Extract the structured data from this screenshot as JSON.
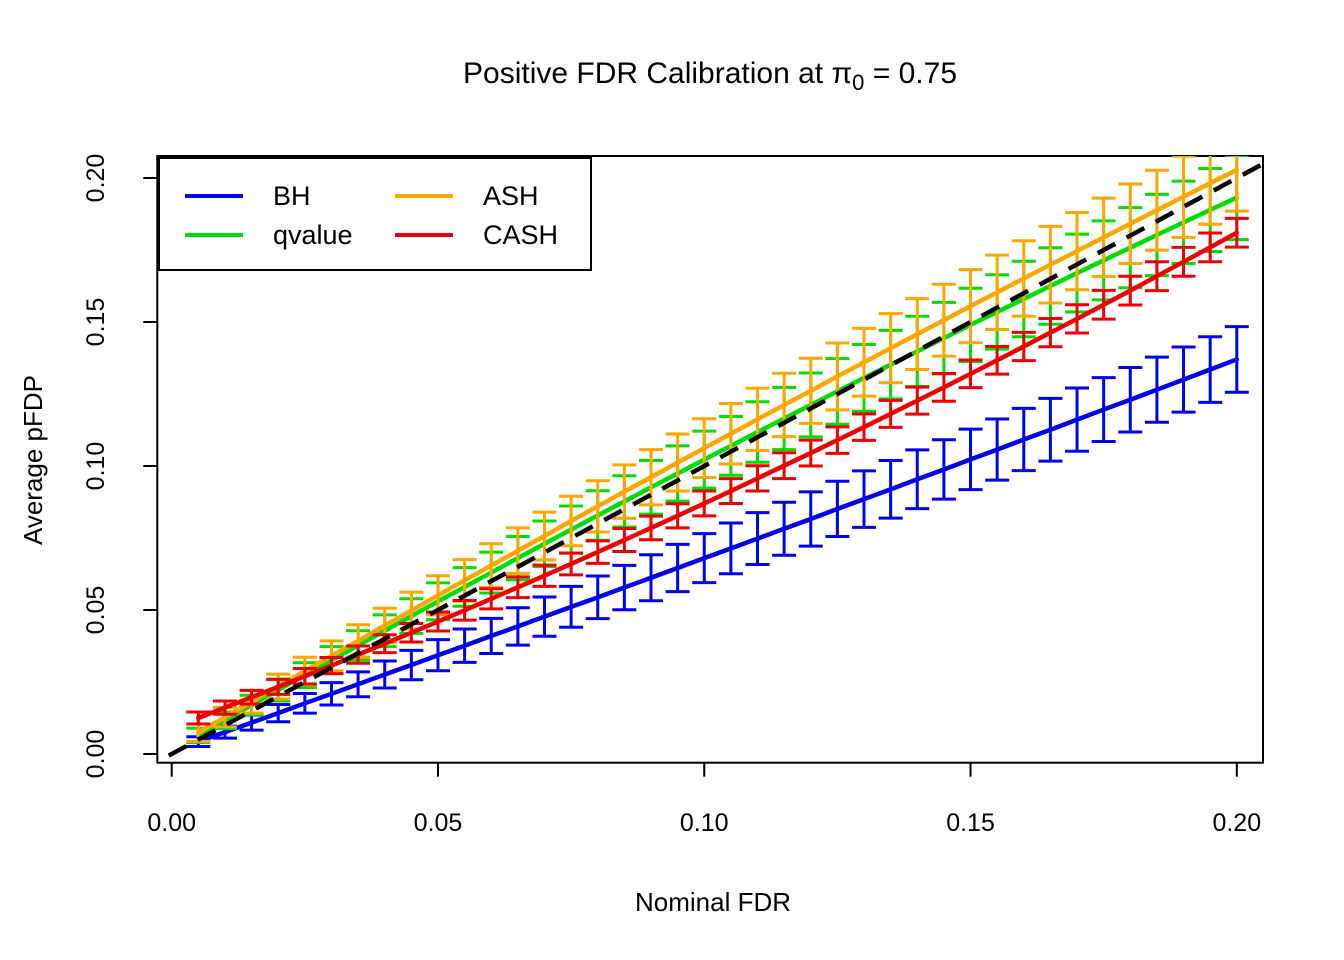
{
  "title": {
    "prefix": "Positive FDR Calibration at ",
    "pi": "π",
    "sub": "0",
    "suffix": " = 0.75"
  },
  "legend": {
    "items": [
      {
        "label": "BH",
        "color": "#0000F5"
      },
      {
        "label": "qvalue",
        "color": "#00E000"
      },
      {
        "label": "ASH",
        "color": "#FFA500"
      },
      {
        "label": "CASH",
        "color": "#F00000"
      }
    ]
  },
  "chart_data": {
    "type": "line",
    "title": "Positive FDR Calibration at π0 = 0.75",
    "xlabel": "Nominal FDR",
    "ylabel": "Average pFDP",
    "xlim": [
      0,
      0.2
    ],
    "ylim": [
      0,
      0.2
    ],
    "grid": false,
    "legend_position": "top-left",
    "x_tick_values": [
      0,
      0.05,
      0.1,
      0.15,
      0.2
    ],
    "x_tick_labels": [
      "0.00",
      "0.05",
      "0.10",
      "0.15",
      "0.20"
    ],
    "y_tick_values": [
      0,
      0.05,
      0.1,
      0.15,
      0.2
    ],
    "y_tick_labels": [
      "0.00",
      "0.05",
      "0.10",
      "0.15",
      "0.20"
    ],
    "reference_line": {
      "slope": 1,
      "intercept": 0,
      "style": "dashed",
      "color": "#000000"
    },
    "error_bars": true,
    "x": [
      0.005,
      0.01,
      0.015,
      0.02,
      0.025,
      0.03,
      0.035,
      0.04,
      0.045,
      0.05,
      0.055,
      0.06,
      0.065,
      0.07,
      0.075,
      0.08,
      0.085,
      0.09,
      0.095,
      0.1,
      0.105,
      0.11,
      0.115,
      0.12,
      0.125,
      0.13,
      0.135,
      0.14,
      0.145,
      0.15,
      0.155,
      0.16,
      0.165,
      0.17,
      0.175,
      0.18,
      0.185,
      0.19,
      0.195,
      0.2
    ],
    "series": [
      {
        "name": "BH",
        "color": "#0000F5",
        "values": [
          0.0043,
          0.0076,
          0.0109,
          0.0142,
          0.0176,
          0.0209,
          0.0242,
          0.0276,
          0.0309,
          0.0343,
          0.0376,
          0.041,
          0.0443,
          0.0477,
          0.0511,
          0.0544,
          0.0578,
          0.0612,
          0.0646,
          0.068,
          0.0714,
          0.0748,
          0.0782,
          0.0816,
          0.0851,
          0.0885,
          0.0919,
          0.0954,
          0.0988,
          0.1023,
          0.1057,
          0.1092,
          0.1126,
          0.1161,
          0.1196,
          0.123,
          0.1265,
          0.13,
          0.1335,
          0.137
        ],
        "errors": [
          0.0017,
          0.0021,
          0.0026,
          0.003,
          0.0034,
          0.0039,
          0.0043,
          0.0047,
          0.0051,
          0.0054,
          0.0058,
          0.0061,
          0.0065,
          0.0068,
          0.0071,
          0.0074,
          0.0077,
          0.008,
          0.0082,
          0.0085,
          0.0088,
          0.009,
          0.0092,
          0.0094,
          0.0096,
          0.0098,
          0.01,
          0.0102,
          0.0103,
          0.0105,
          0.0106,
          0.0108,
          0.0109,
          0.011,
          0.0111,
          0.0112,
          0.0113,
          0.0113,
          0.0114,
          0.0114
        ]
      },
      {
        "name": "qvalue",
        "color": "#00E000",
        "values": [
          0.0065,
          0.0117,
          0.017,
          0.0222,
          0.0274,
          0.0326,
          0.0377,
          0.0428,
          0.0479,
          0.053,
          0.058,
          0.063,
          0.068,
          0.073,
          0.0779,
          0.0828,
          0.0877,
          0.0926,
          0.0974,
          0.1022,
          0.107,
          0.1118,
          0.1165,
          0.1212,
          0.1259,
          0.1306,
          0.1352,
          0.1398,
          0.1444,
          0.149,
          0.1535,
          0.158,
          0.1625,
          0.167,
          0.1714,
          0.1758,
          0.1802,
          0.1846,
          0.1889,
          0.1932
        ],
        "errors": [
          0.0025,
          0.0029,
          0.0034,
          0.0038,
          0.0043,
          0.0047,
          0.0051,
          0.0055,
          0.006,
          0.0064,
          0.0067,
          0.0071,
          0.0075,
          0.0079,
          0.0082,
          0.0086,
          0.0089,
          0.0093,
          0.0096,
          0.0099,
          0.0102,
          0.0105,
          0.0108,
          0.0111,
          0.0114,
          0.0116,
          0.0119,
          0.0122,
          0.0124,
          0.0127,
          0.0129,
          0.0131,
          0.0133,
          0.0135,
          0.0137,
          0.0139,
          0.0141,
          0.0143,
          0.0144,
          0.0146
        ]
      },
      {
        "name": "ASH",
        "color": "#FFA500",
        "values": [
          0.0074,
          0.0128,
          0.0181,
          0.0234,
          0.0288,
          0.0341,
          0.0393,
          0.0446,
          0.0498,
          0.0551,
          0.0603,
          0.0654,
          0.0706,
          0.0757,
          0.0809,
          0.086,
          0.0911,
          0.0961,
          0.1012,
          0.1062,
          0.1112,
          0.1162,
          0.1212,
          0.1261,
          0.1311,
          0.136,
          0.1409,
          0.1458,
          0.1506,
          0.1555,
          0.1603,
          0.1651,
          0.1699,
          0.1746,
          0.1794,
          0.1841,
          0.1888,
          0.1935,
          0.1982,
          0.2028
        ],
        "errors": [
          0.003,
          0.0034,
          0.0039,
          0.0043,
          0.0048,
          0.0052,
          0.0056,
          0.006,
          0.0064,
          0.0068,
          0.0072,
          0.0076,
          0.0079,
          0.0083,
          0.0086,
          0.0089,
          0.0093,
          0.0096,
          0.0099,
          0.0102,
          0.0105,
          0.0108,
          0.011,
          0.0113,
          0.0116,
          0.0118,
          0.012,
          0.0123,
          0.0125,
          0.0127,
          0.0129,
          0.0131,
          0.0133,
          0.0134,
          0.0136,
          0.0138,
          0.0139,
          0.0141,
          0.0142,
          0.0143
        ]
      },
      {
        "name": "CASH",
        "color": "#F00000",
        "values": [
          0.0125,
          0.0161,
          0.0197,
          0.0233,
          0.027,
          0.0307,
          0.0345,
          0.0383,
          0.0421,
          0.046,
          0.0499,
          0.0539,
          0.0579,
          0.0619,
          0.066,
          0.0701,
          0.0743,
          0.0785,
          0.0827,
          0.087,
          0.0913,
          0.0957,
          0.1001,
          0.1045,
          0.109,
          0.1135,
          0.1181,
          0.1227,
          0.1273,
          0.132,
          0.1367,
          0.1415,
          0.1463,
          0.1511,
          0.156,
          0.1609,
          0.1659,
          0.1709,
          0.1759,
          0.181
        ],
        "errors": [
          0.0021,
          0.0023,
          0.0024,
          0.0026,
          0.0027,
          0.0028,
          0.003,
          0.0031,
          0.0032,
          0.0033,
          0.0034,
          0.0035,
          0.0036,
          0.0037,
          0.0038,
          0.0039,
          0.004,
          0.0041,
          0.0042,
          0.0043,
          0.0043,
          0.0044,
          0.0045,
          0.0045,
          0.0046,
          0.0046,
          0.0047,
          0.0047,
          0.0048,
          0.0048,
          0.0048,
          0.0049,
          0.0049,
          0.0049,
          0.005,
          0.005,
          0.005,
          0.005,
          0.005,
          0.005
        ]
      }
    ]
  }
}
